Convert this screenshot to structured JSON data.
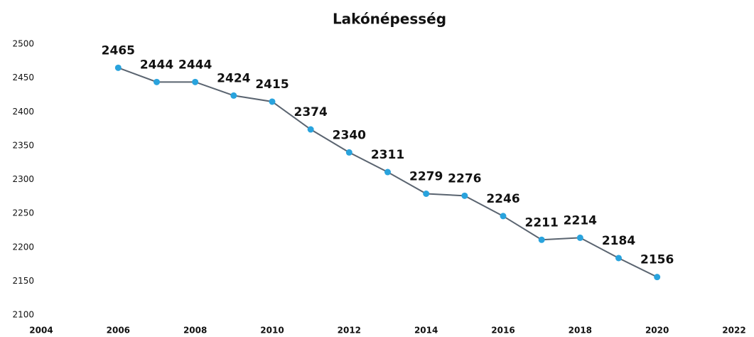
{
  "chart_data": {
    "type": "line",
    "title": "Lakónépesség",
    "x": [
      2006,
      2007,
      2008,
      2009,
      2010,
      2011,
      2012,
      2013,
      2014,
      2015,
      2016,
      2017,
      2018,
      2019,
      2020
    ],
    "series": [
      {
        "name": "Lakónépesség",
        "line_color": "#5a6470",
        "color": "#29a3dd",
        "values": [
          2465,
          2444,
          2444,
          2424,
          2415,
          2374,
          2340,
          2311,
          2279,
          2276,
          2246,
          2211,
          2214,
          2184,
          2156
        ]
      }
    ],
    "xlim": [
      2004,
      2022
    ],
    "xticks": [
      2004,
      2006,
      2008,
      2010,
      2012,
      2014,
      2016,
      2018,
      2020,
      2022
    ],
    "ylim": [
      2100,
      2500
    ],
    "yticks": [
      2100,
      2150,
      2200,
      2250,
      2300,
      2350,
      2400,
      2450,
      2500
    ],
    "grid": false
  }
}
